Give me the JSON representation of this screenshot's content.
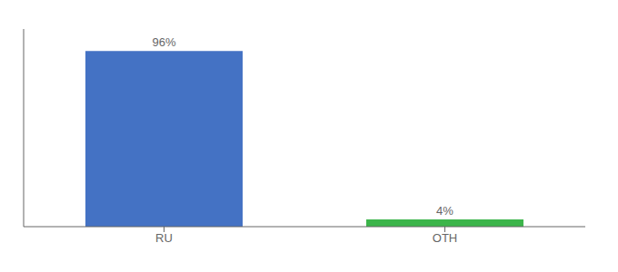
{
  "chart_data": {
    "type": "bar",
    "categories": [
      "RU",
      "OTH"
    ],
    "values": [
      96,
      4
    ],
    "value_labels": [
      "96%",
      "4%"
    ],
    "colors": [
      "#4472c4",
      "#3cb54a"
    ],
    "ylim": [
      0,
      108
    ],
    "data_labels": true,
    "tick_labels": "x",
    "grid": false
  }
}
